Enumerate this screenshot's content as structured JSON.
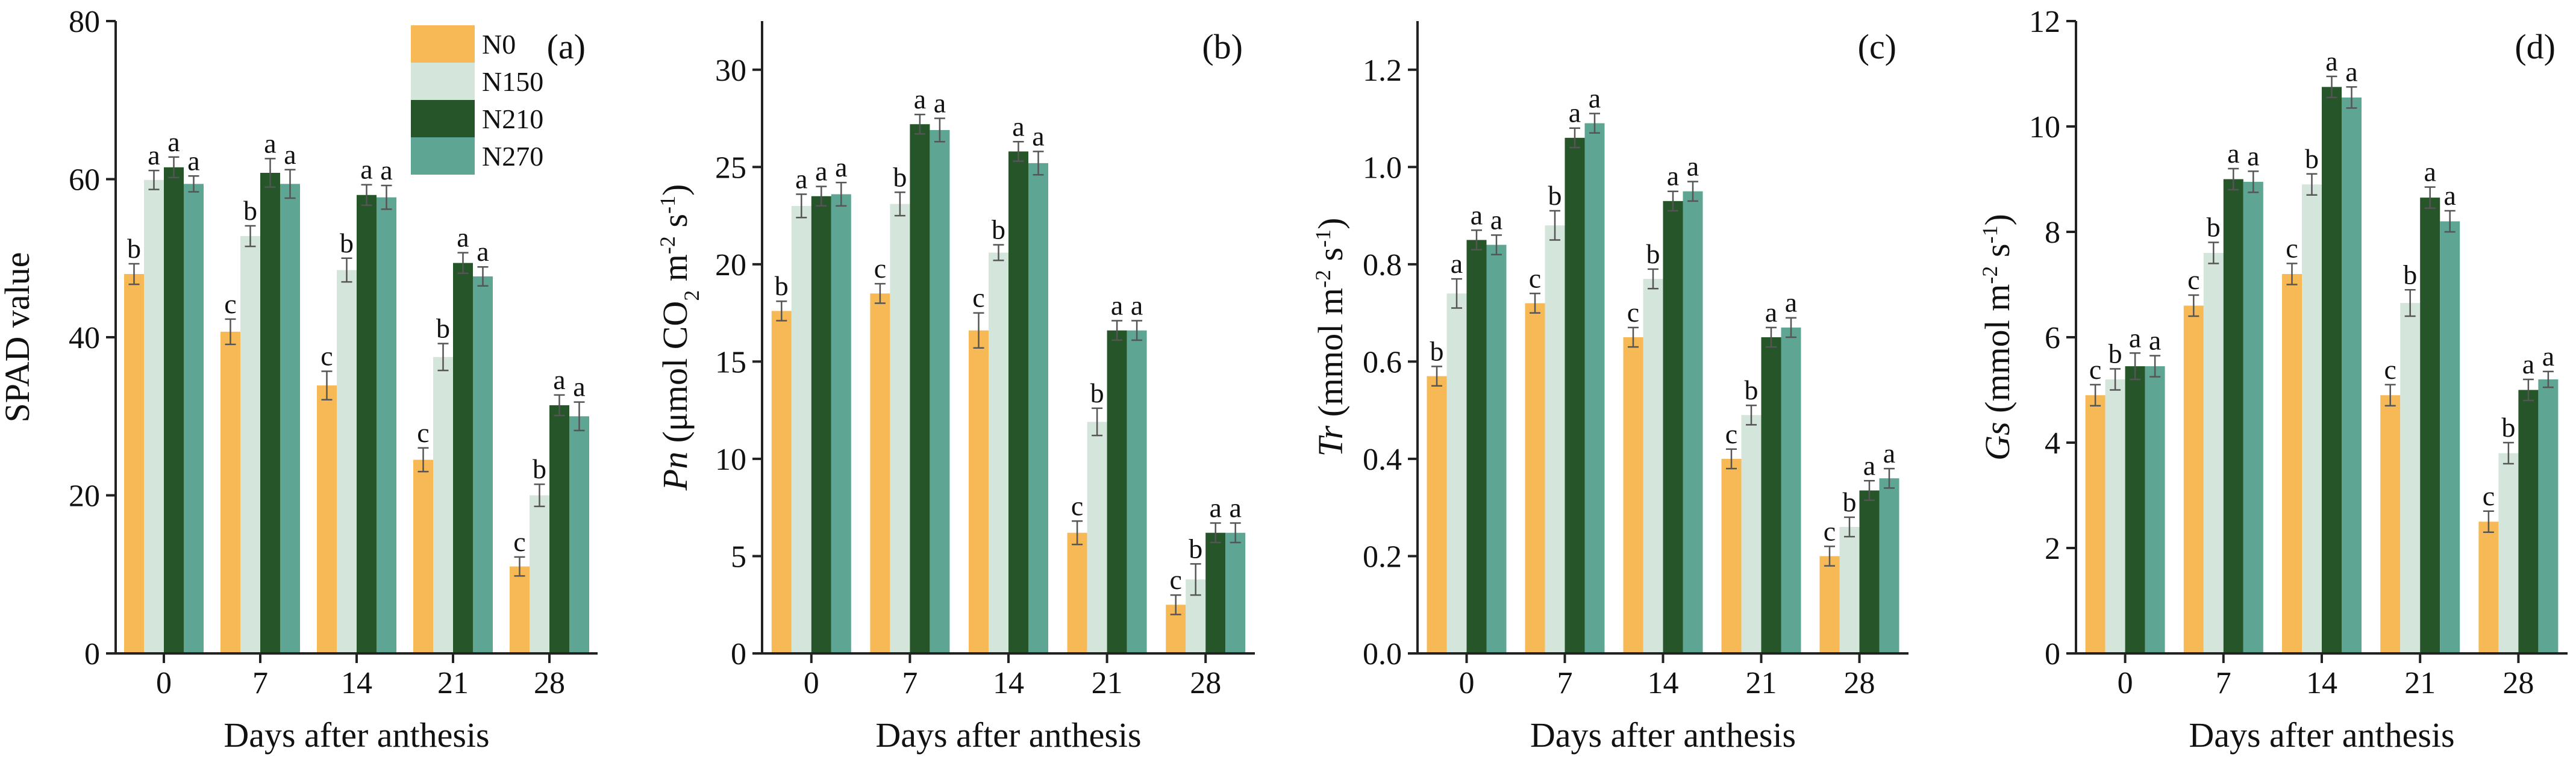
{
  "figure_title": "",
  "series_colors": {
    "N0": "#f6b956",
    "N150": "#d4e5dc",
    "N210": "#255529",
    "N270": "#5fa593"
  },
  "chart_data": [
    {
      "type": "bar",
      "panel": "(a)",
      "categories": [
        "0",
        "7",
        "14",
        "21",
        "28"
      ],
      "xlabel": "Days after anthesis",
      "ylabel_parts": [
        {
          "t": "SPAD value",
          "i": false
        }
      ],
      "ylim": [
        0,
        80
      ],
      "yticks": [
        0,
        20,
        40,
        60,
        80
      ],
      "ytick_labels": [
        "0",
        "20",
        "40",
        "60",
        "80"
      ],
      "legend": [
        "N0",
        "N150",
        "N210",
        "N270"
      ],
      "legend_position": "top-right",
      "series": [
        {
          "name": "N0",
          "values": [
            48.0,
            40.7,
            33.9,
            24.5,
            11.0
          ],
          "errors": [
            1.3,
            1.6,
            1.8,
            1.5,
            1.2
          ],
          "labels": [
            "b",
            "c",
            "c",
            "c",
            "c"
          ]
        },
        {
          "name": "N150",
          "values": [
            59.9,
            52.8,
            48.5,
            37.5,
            20.0
          ],
          "errors": [
            1.2,
            1.3,
            1.5,
            1.7,
            1.4
          ],
          "labels": [
            "a",
            "b",
            "b",
            "b",
            "b"
          ]
        },
        {
          "name": "N210",
          "values": [
            61.5,
            60.8,
            58.0,
            49.4,
            31.4
          ],
          "errors": [
            1.3,
            1.8,
            1.3,
            1.3,
            1.3
          ],
          "labels": [
            "a",
            "a",
            "a",
            "a",
            "a"
          ]
        },
        {
          "name": "N270",
          "values": [
            59.4,
            59.4,
            57.7,
            47.7,
            30.0
          ],
          "errors": [
            1.0,
            1.8,
            1.5,
            1.2,
            1.8
          ],
          "labels": [
            "a",
            "a",
            "a",
            "a",
            "a"
          ]
        }
      ]
    },
    {
      "type": "bar",
      "panel": "(b)",
      "categories": [
        "0",
        "7",
        "14",
        "21",
        "28"
      ],
      "xlabel": "Days after anthesis",
      "ylabel_parts": [
        {
          "t": "Pn",
          "i": true
        },
        {
          "t": " (μmol CO",
          "i": false
        },
        {
          "t": "2",
          "i": false,
          "sub": true
        },
        {
          "t": " m",
          "i": false
        },
        {
          "t": "-2",
          "i": false,
          "sup": true
        },
        {
          "t": " s",
          "i": false
        },
        {
          "t": "-1",
          "i": false,
          "sup": true
        },
        {
          "t": ")",
          "i": false
        }
      ],
      "ylim": [
        0,
        32.5
      ],
      "yticks": [
        0,
        5,
        10,
        15,
        20,
        25,
        30
      ],
      "ytick_labels": [
        "0",
        "5",
        "10",
        "15",
        "20",
        "25",
        "30"
      ],
      "series": [
        {
          "name": "N0",
          "values": [
            17.6,
            18.5,
            16.6,
            6.2,
            2.5
          ],
          "errors": [
            0.5,
            0.5,
            0.9,
            0.6,
            0.5
          ],
          "labels": [
            "b",
            "c",
            "c",
            "c",
            "c"
          ]
        },
        {
          "name": "N150",
          "values": [
            23.0,
            23.1,
            20.6,
            11.9,
            3.8
          ],
          "errors": [
            0.6,
            0.6,
            0.4,
            0.7,
            0.8
          ],
          "labels": [
            "a",
            "b",
            "b",
            "b",
            "b"
          ]
        },
        {
          "name": "N210",
          "values": [
            23.5,
            27.2,
            25.8,
            16.6,
            6.2
          ],
          "errors": [
            0.5,
            0.5,
            0.5,
            0.5,
            0.5
          ],
          "labels": [
            "a",
            "a",
            "a",
            "a",
            "a"
          ]
        },
        {
          "name": "N270",
          "values": [
            23.6,
            26.9,
            25.2,
            16.6,
            6.2
          ],
          "errors": [
            0.6,
            0.6,
            0.6,
            0.5,
            0.5
          ],
          "labels": [
            "a",
            "a",
            "a",
            "a",
            "a"
          ]
        }
      ]
    },
    {
      "type": "bar",
      "panel": "(c)",
      "categories": [
        "0",
        "7",
        "14",
        "21",
        "28"
      ],
      "xlabel": "Days after anthesis",
      "ylabel_parts": [
        {
          "t": "Tr",
          "i": true
        },
        {
          "t": " (mmol m",
          "i": false
        },
        {
          "t": "-2",
          "i": false,
          "sup": true
        },
        {
          "t": " s",
          "i": false
        },
        {
          "t": "-1",
          "i": false,
          "sup": true
        },
        {
          "t": ")",
          "i": false
        }
      ],
      "ylim": [
        0,
        1.3
      ],
      "yticks": [
        0,
        0.2,
        0.4,
        0.6,
        0.8,
        1.0,
        1.2
      ],
      "ytick_labels": [
        "0.0",
        "0.2",
        "0.4",
        "0.6",
        "0.8",
        "1.0",
        "1.2"
      ],
      "series": [
        {
          "name": "N0",
          "values": [
            0.57,
            0.72,
            0.65,
            0.4,
            0.2
          ],
          "errors": [
            0.02,
            0.02,
            0.02,
            0.02,
            0.02
          ],
          "labels": [
            "b",
            "c",
            "c",
            "c",
            "c"
          ]
        },
        {
          "name": "N150",
          "values": [
            0.74,
            0.88,
            0.77,
            0.49,
            0.26
          ],
          "errors": [
            0.03,
            0.03,
            0.02,
            0.02,
            0.02
          ],
          "labels": [
            "a",
            "b",
            "b",
            "b",
            "b"
          ]
        },
        {
          "name": "N210",
          "values": [
            0.85,
            1.06,
            0.93,
            0.65,
            0.335
          ],
          "errors": [
            0.02,
            0.02,
            0.02,
            0.02,
            0.02
          ],
          "labels": [
            "a",
            "a",
            "a",
            "a",
            "a"
          ]
        },
        {
          "name": "N270",
          "values": [
            0.84,
            1.09,
            0.95,
            0.67,
            0.36
          ],
          "errors": [
            0.02,
            0.02,
            0.02,
            0.02,
            0.02
          ],
          "labels": [
            "a",
            "a",
            "a",
            "a",
            "a"
          ]
        }
      ]
    },
    {
      "type": "bar",
      "panel": "(d)",
      "categories": [
        "0",
        "7",
        "14",
        "21",
        "28"
      ],
      "xlabel": "Days after anthesis",
      "ylabel_parts": [
        {
          "t": "Gs",
          "i": true
        },
        {
          "t": " (mmol m",
          "i": false
        },
        {
          "t": "-2",
          "i": false,
          "sup": true
        },
        {
          "t": " s",
          "i": false
        },
        {
          "t": "-1",
          "i": false,
          "sup": true
        },
        {
          "t": ")",
          "i": false
        }
      ],
      "ylim": [
        0,
        12
      ],
      "yticks": [
        0,
        2,
        4,
        6,
        8,
        10,
        12
      ],
      "ytick_labels": [
        "0",
        "2",
        "4",
        "6",
        "8",
        "10",
        "12"
      ],
      "series": [
        {
          "name": "N0",
          "values": [
            4.9,
            6.6,
            7.2,
            4.9,
            2.5
          ],
          "errors": [
            0.2,
            0.2,
            0.2,
            0.2,
            0.2
          ],
          "labels": [
            "c",
            "c",
            "c",
            "c",
            "c"
          ]
        },
        {
          "name": "N150",
          "values": [
            5.2,
            7.6,
            8.9,
            6.65,
            3.8
          ],
          "errors": [
            0.2,
            0.2,
            0.2,
            0.25,
            0.2
          ],
          "labels": [
            "b",
            "b",
            "b",
            "b",
            "b"
          ]
        },
        {
          "name": "N210",
          "values": [
            5.45,
            9.0,
            10.75,
            8.65,
            5.0
          ],
          "errors": [
            0.25,
            0.2,
            0.2,
            0.2,
            0.2
          ],
          "labels": [
            "a",
            "a",
            "a",
            "a",
            "a"
          ]
        },
        {
          "name": "N270",
          "values": [
            5.45,
            8.95,
            10.55,
            8.2,
            5.2
          ],
          "errors": [
            0.2,
            0.2,
            0.2,
            0.2,
            0.15
          ],
          "labels": [
            "a",
            "a",
            "a",
            "a",
            "a"
          ]
        }
      ]
    }
  ]
}
